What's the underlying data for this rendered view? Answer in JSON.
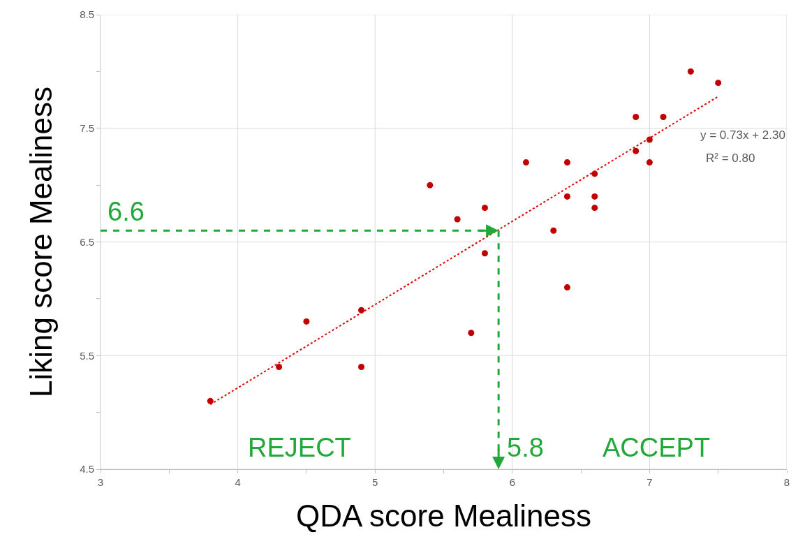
{
  "chart_data": {
    "type": "scatter",
    "xlabel": "QDA score Mealiness",
    "ylabel": "Liking score Mealiness",
    "xlim": [
      3,
      8
    ],
    "xticks": [
      3,
      {
        "value": 3.5,
        "label": null
      },
      4,
      {
        "value": 4.5,
        "label": null
      },
      5,
      {
        "value": 5.5,
        "label": null
      },
      6,
      {
        "value": 6.5,
        "label": null
      },
      7,
      {
        "value": 7.5,
        "label": null
      },
      8
    ],
    "ylim": [
      4.5,
      8.5
    ],
    "yticks": [
      4.5,
      {
        "value": 5,
        "label": null
      },
      5.5,
      {
        "value": 6,
        "label": null
      },
      6.5,
      {
        "value": 7,
        "label": null
      },
      7.5,
      {
        "value": 8,
        "label": null
      },
      8.5
    ],
    "grid": true,
    "series": [
      {
        "marker": "circle",
        "color": "#c00000",
        "x": [
          3.8,
          4.3,
          4.5,
          4.9,
          4.9,
          5.4,
          5.6,
          5.8,
          5.8,
          5.7,
          6.1,
          6.3,
          6.4,
          6.4,
          6.4,
          6.6,
          6.6,
          6.6,
          6.9,
          6.9,
          7.0,
          7.0,
          7.1,
          7.3,
          7.5
        ],
        "values": [
          5.1,
          5.4,
          5.8,
          5.9,
          5.4,
          7.0,
          6.7,
          6.8,
          6.4,
          5.7,
          7.2,
          6.6,
          7.2,
          6.9,
          6.1,
          7.1,
          6.9,
          6.8,
          7.6,
          7.3,
          7.4,
          7.2,
          7.6,
          8.0,
          7.9
        ]
      },
      {
        "type": "line",
        "color": "#e00000",
        "line_style": "dotted",
        "x": [
          3.8,
          7.5
        ],
        "values": [
          5.07,
          7.78
        ]
      }
    ],
    "ref_lines": [
      {
        "axis": "y",
        "value": 6.6,
        "label": "6.6",
        "color": "#22a838",
        "line_style": "dashed"
      },
      {
        "axis": "x",
        "value": 5.9,
        "color": "#22a838",
        "line_style": "dashed"
      }
    ],
    "annotations": [
      "REJECT",
      "ACCEPT",
      "y = 0.73x + 2.30",
      "R² = 0.80",
      "5.8"
    ]
  }
}
